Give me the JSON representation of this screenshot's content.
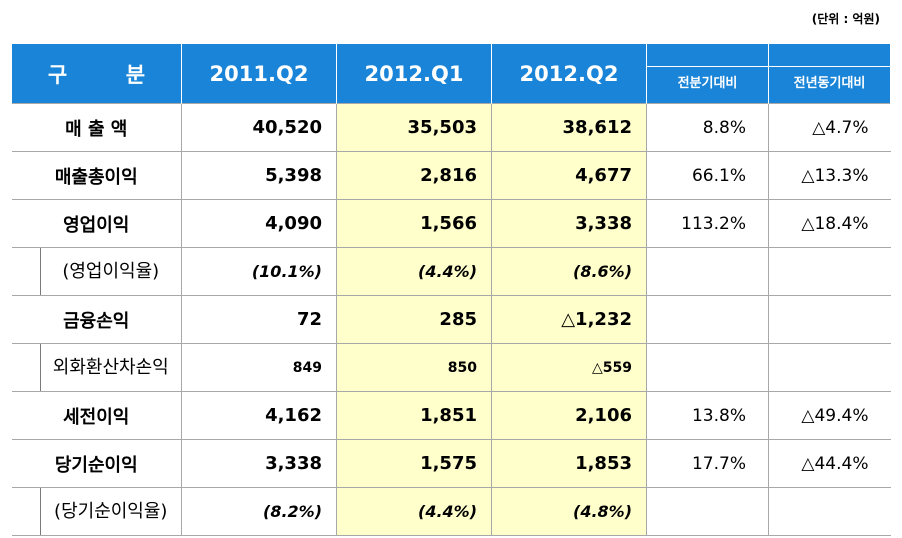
{
  "unit": "(단위 : 억원)",
  "header": {
    "col0": "구        분",
    "col1": "2011.Q2",
    "col2": "2012.Q1",
    "col3": "2012.Q2",
    "col4": "전분기대비",
    "col5": "전년동기대비"
  },
  "rows": [
    {
      "label": "매 출 액",
      "v1": "40,520",
      "v2": "35,503",
      "v3": "38,612",
      "v4": "8.8%",
      "v5": "△4.7%"
    },
    {
      "label": "매출총이익",
      "v1": "5,398",
      "v2": "2,816",
      "v3": "4,677",
      "v4": "66.1%",
      "v5": "△13.3%"
    },
    {
      "label": "영업이익",
      "v1": "4,090",
      "v2": "1,566",
      "v3": "3,338",
      "v4": "113.2%",
      "v5": "△18.4%"
    },
    {
      "label": "(영업이익율)",
      "v1": "(10.1%)",
      "v2": "(4.4%)",
      "v3": "(8.6%)",
      "v4": "",
      "v5": ""
    },
    {
      "label": "금융손익",
      "v1": "72",
      "v2": "285",
      "v3": "△1,232",
      "v4": "",
      "v5": ""
    },
    {
      "label": "외화환산차손익",
      "v1": "849",
      "v2": "850",
      "v3": "△559",
      "v4": "",
      "v5": ""
    },
    {
      "label": "세전이익",
      "v1": "4,162",
      "v2": "1,851",
      "v3": "2,106",
      "v4": "13.8%",
      "v5": "△49.4%"
    },
    {
      "label": "당기순이익",
      "v1": "3,338",
      "v2": "1,575",
      "v3": "1,853",
      "v4": "17.7%",
      "v5": "△44.4%"
    },
    {
      "label": "(당기순이익율)",
      "v1": "(8.2%)",
      "v2": "(4.4%)",
      "v3": "(4.8%)",
      "v4": "",
      "v5": ""
    }
  ],
  "colors": {
    "header_bg": "#1a85d8",
    "highlight": "#ffffcc"
  }
}
